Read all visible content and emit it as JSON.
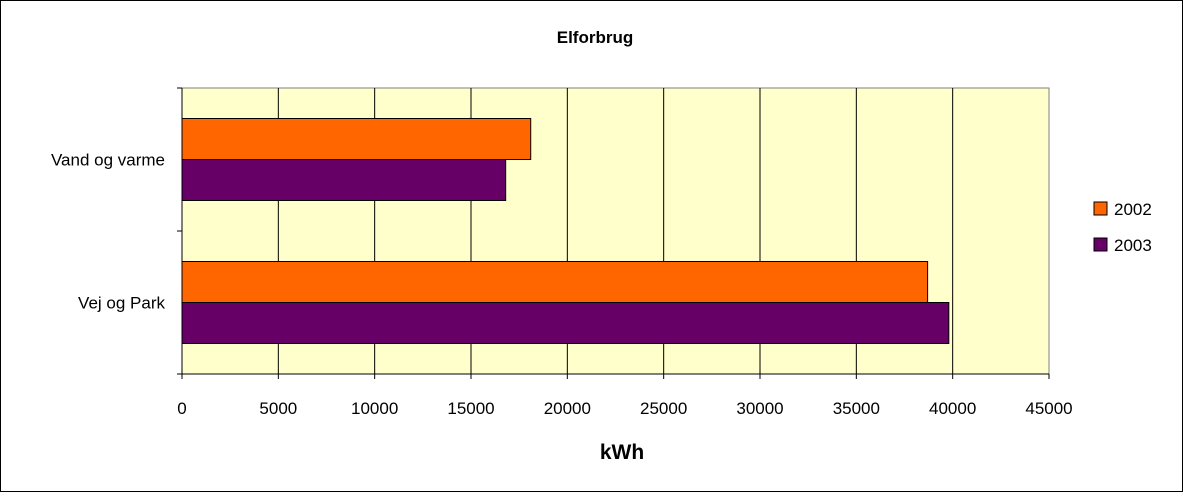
{
  "chart_data": {
    "type": "bar",
    "orientation": "horizontal",
    "title": "Elforbrug",
    "xlabel": "kWh",
    "ylabel": "",
    "categories": [
      "Vand og varme",
      "Vej og Park"
    ],
    "series": [
      {
        "name": "2002",
        "values": [
          18100,
          38700
        ],
        "color": "#FF6600"
      },
      {
        "name": "2003",
        "values": [
          16800,
          39800
        ],
        "color": "#660066"
      }
    ],
    "xlim": [
      0,
      45000
    ],
    "xticks": [
      0,
      5000,
      10000,
      15000,
      20000,
      25000,
      30000,
      35000,
      40000,
      45000
    ],
    "grid": true,
    "legend_position": "right",
    "plot_background": "#FFFFCC"
  }
}
